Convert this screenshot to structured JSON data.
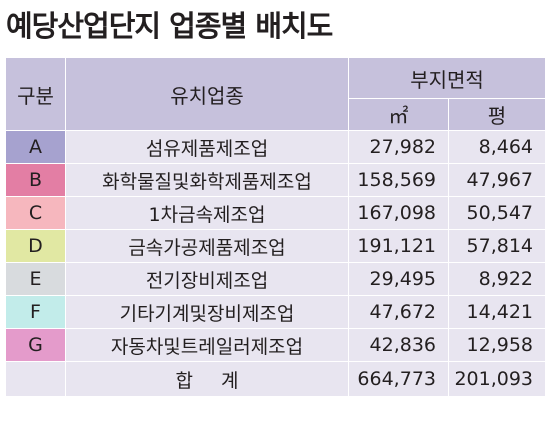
{
  "title": "예당산업단지 업종별 배치도",
  "header": {
    "col_category": "구분",
    "col_industry": "유치업종",
    "col_area": "부지면적",
    "col_sqm": "㎡",
    "col_pyeong": "평"
  },
  "rows": [
    {
      "code": "A",
      "industry": "섬유제품제조업",
      "sqm": "27,982",
      "pyeong": "8,464",
      "color": "#a6a2cf"
    },
    {
      "code": "B",
      "industry": "화학물질및화학제품제조업",
      "sqm": "158,569",
      "pyeong": "47,967",
      "color": "#e37ea4"
    },
    {
      "code": "C",
      "industry": "1차금속제조업",
      "sqm": "167,098",
      "pyeong": "50,547",
      "color": "#f6b7be"
    },
    {
      "code": "D",
      "industry": "금속가공제품제조업",
      "sqm": "191,121",
      "pyeong": "57,814",
      "color": "#e1e8a3"
    },
    {
      "code": "E",
      "industry": "전기장비제조업",
      "sqm": "29,495",
      "pyeong": "8,922",
      "color": "#d8dbde"
    },
    {
      "code": "F",
      "industry": "기타기계및장비제조업",
      "sqm": "47,672",
      "pyeong": "14,421",
      "color": "#c2ecea"
    },
    {
      "code": "G",
      "industry": "자동차및트레일러제조업",
      "sqm": "42,836",
      "pyeong": "12,958",
      "color": "#e49bcb"
    }
  ],
  "total": {
    "label": "합계",
    "sqm": "664,773",
    "pyeong": "201,093"
  }
}
